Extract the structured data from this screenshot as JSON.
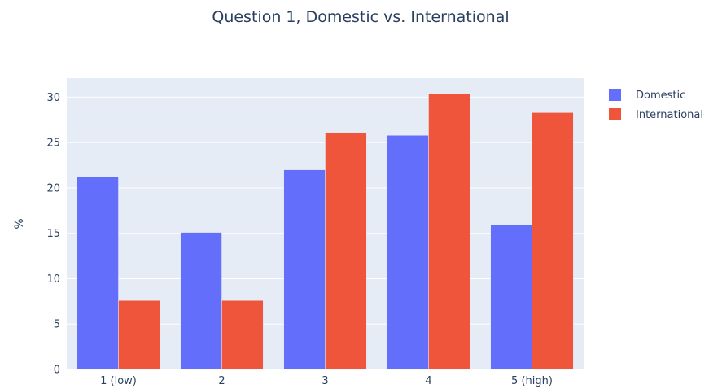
{
  "chart_data": {
    "type": "bar",
    "title": "Question 1, Domestic vs. International",
    "xlabel": "",
    "ylabel": "%",
    "categories": [
      "1 (low)",
      "2",
      "3",
      "4",
      "5 (high)"
    ],
    "series": [
      {
        "name": "Domestic",
        "color": "#636efa",
        "values": [
          21.2,
          15.1,
          22.0,
          25.8,
          15.9
        ]
      },
      {
        "name": "International",
        "color": "#ef553b",
        "values": [
          7.6,
          7.6,
          26.1,
          30.4,
          28.3
        ]
      }
    ],
    "ylim": [
      0,
      32.1
    ],
    "yticks": [
      "0",
      "5",
      "10",
      "15",
      "20",
      "25",
      "30"
    ],
    "grid": true,
    "legend_position": "top-right",
    "plot_background": "#e5ecf6"
  }
}
